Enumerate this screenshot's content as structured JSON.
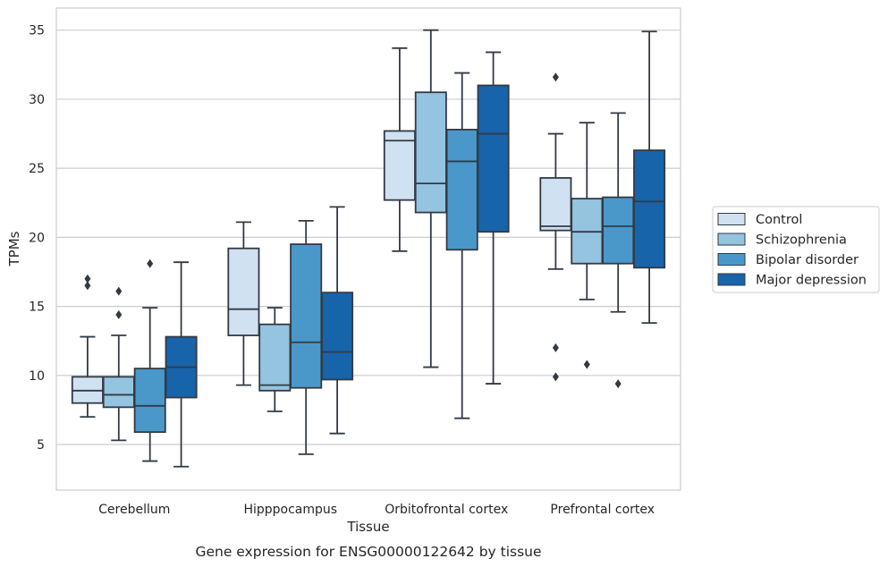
{
  "caption": "Gene expression for ENSG00000122642 by tissue",
  "chart_data": {
    "type": "boxplot",
    "xlabel": "Tissue",
    "ylabel": "TPMs",
    "ylim": [
      1.7,
      36.6
    ],
    "yticks": [
      5,
      10,
      15,
      20,
      25,
      30,
      35
    ],
    "grid": "horizontal",
    "legend_position": "right",
    "categories": [
      "Cerebellum",
      "Hipppocampus",
      "Orbitofrontal cortex",
      "Prefrontal cortex"
    ],
    "series": [
      {
        "name": "Control",
        "color": "#d0e1f2",
        "boxes": [
          {
            "whislo": 7.0,
            "q1": 8.0,
            "med": 8.9,
            "q3": 9.9,
            "whishi": 12.8,
            "fliers": [
              16.5,
              17.0
            ]
          },
          {
            "whislo": 9.3,
            "q1": 12.9,
            "med": 14.8,
            "q3": 19.2,
            "whishi": 21.1,
            "fliers": []
          },
          {
            "whislo": 19.0,
            "q1": 22.7,
            "med": 27.0,
            "q3": 27.7,
            "whishi": 33.7,
            "fliers": []
          },
          {
            "whislo": 17.7,
            "q1": 20.5,
            "med": 20.8,
            "q3": 24.3,
            "whishi": 27.5,
            "fliers": [
              9.9,
              12.0,
              31.6
            ]
          }
        ]
      },
      {
        "name": "Schizophrenia",
        "color": "#94c4df",
        "boxes": [
          {
            "whislo": 5.3,
            "q1": 7.7,
            "med": 8.6,
            "q3": 9.9,
            "whishi": 12.9,
            "fliers": [
              14.4,
              16.1
            ]
          },
          {
            "whislo": 7.4,
            "q1": 8.9,
            "med": 9.3,
            "q3": 13.7,
            "whishi": 14.9,
            "fliers": []
          },
          {
            "whislo": 10.6,
            "q1": 21.8,
            "med": 23.9,
            "q3": 30.5,
            "whishi": 35.0,
            "fliers": []
          },
          {
            "whislo": 15.5,
            "q1": 18.1,
            "med": 20.4,
            "q3": 22.8,
            "whishi": 28.3,
            "fliers": [
              10.8
            ]
          }
        ]
      },
      {
        "name": "Bipolar disorder",
        "color": "#4a98c9",
        "boxes": [
          {
            "whislo": 3.8,
            "q1": 5.9,
            "med": 7.8,
            "q3": 10.5,
            "whishi": 14.9,
            "fliers": [
              18.1
            ]
          },
          {
            "whislo": 4.3,
            "q1": 9.1,
            "med": 12.4,
            "q3": 19.5,
            "whishi": 21.2,
            "fliers": []
          },
          {
            "whislo": 6.9,
            "q1": 19.1,
            "med": 25.5,
            "q3": 27.8,
            "whishi": 31.9,
            "fliers": []
          },
          {
            "whislo": 14.6,
            "q1": 18.1,
            "med": 20.8,
            "q3": 22.9,
            "whishi": 29.0,
            "fliers": [
              9.4
            ]
          }
        ]
      },
      {
        "name": "Major depression",
        "color": "#1764ab",
        "boxes": [
          {
            "whislo": 3.4,
            "q1": 8.4,
            "med": 10.6,
            "q3": 12.8,
            "whishi": 18.2,
            "fliers": []
          },
          {
            "whislo": 5.8,
            "q1": 9.7,
            "med": 11.7,
            "q3": 16.0,
            "whishi": 22.2,
            "fliers": []
          },
          {
            "whislo": 9.4,
            "q1": 20.4,
            "med": 27.5,
            "q3": 31.0,
            "whishi": 33.4,
            "fliers": []
          },
          {
            "whislo": 13.8,
            "q1": 17.8,
            "med": 22.6,
            "q3": 26.3,
            "whishi": 34.9,
            "fliers": []
          }
        ]
      }
    ]
  }
}
